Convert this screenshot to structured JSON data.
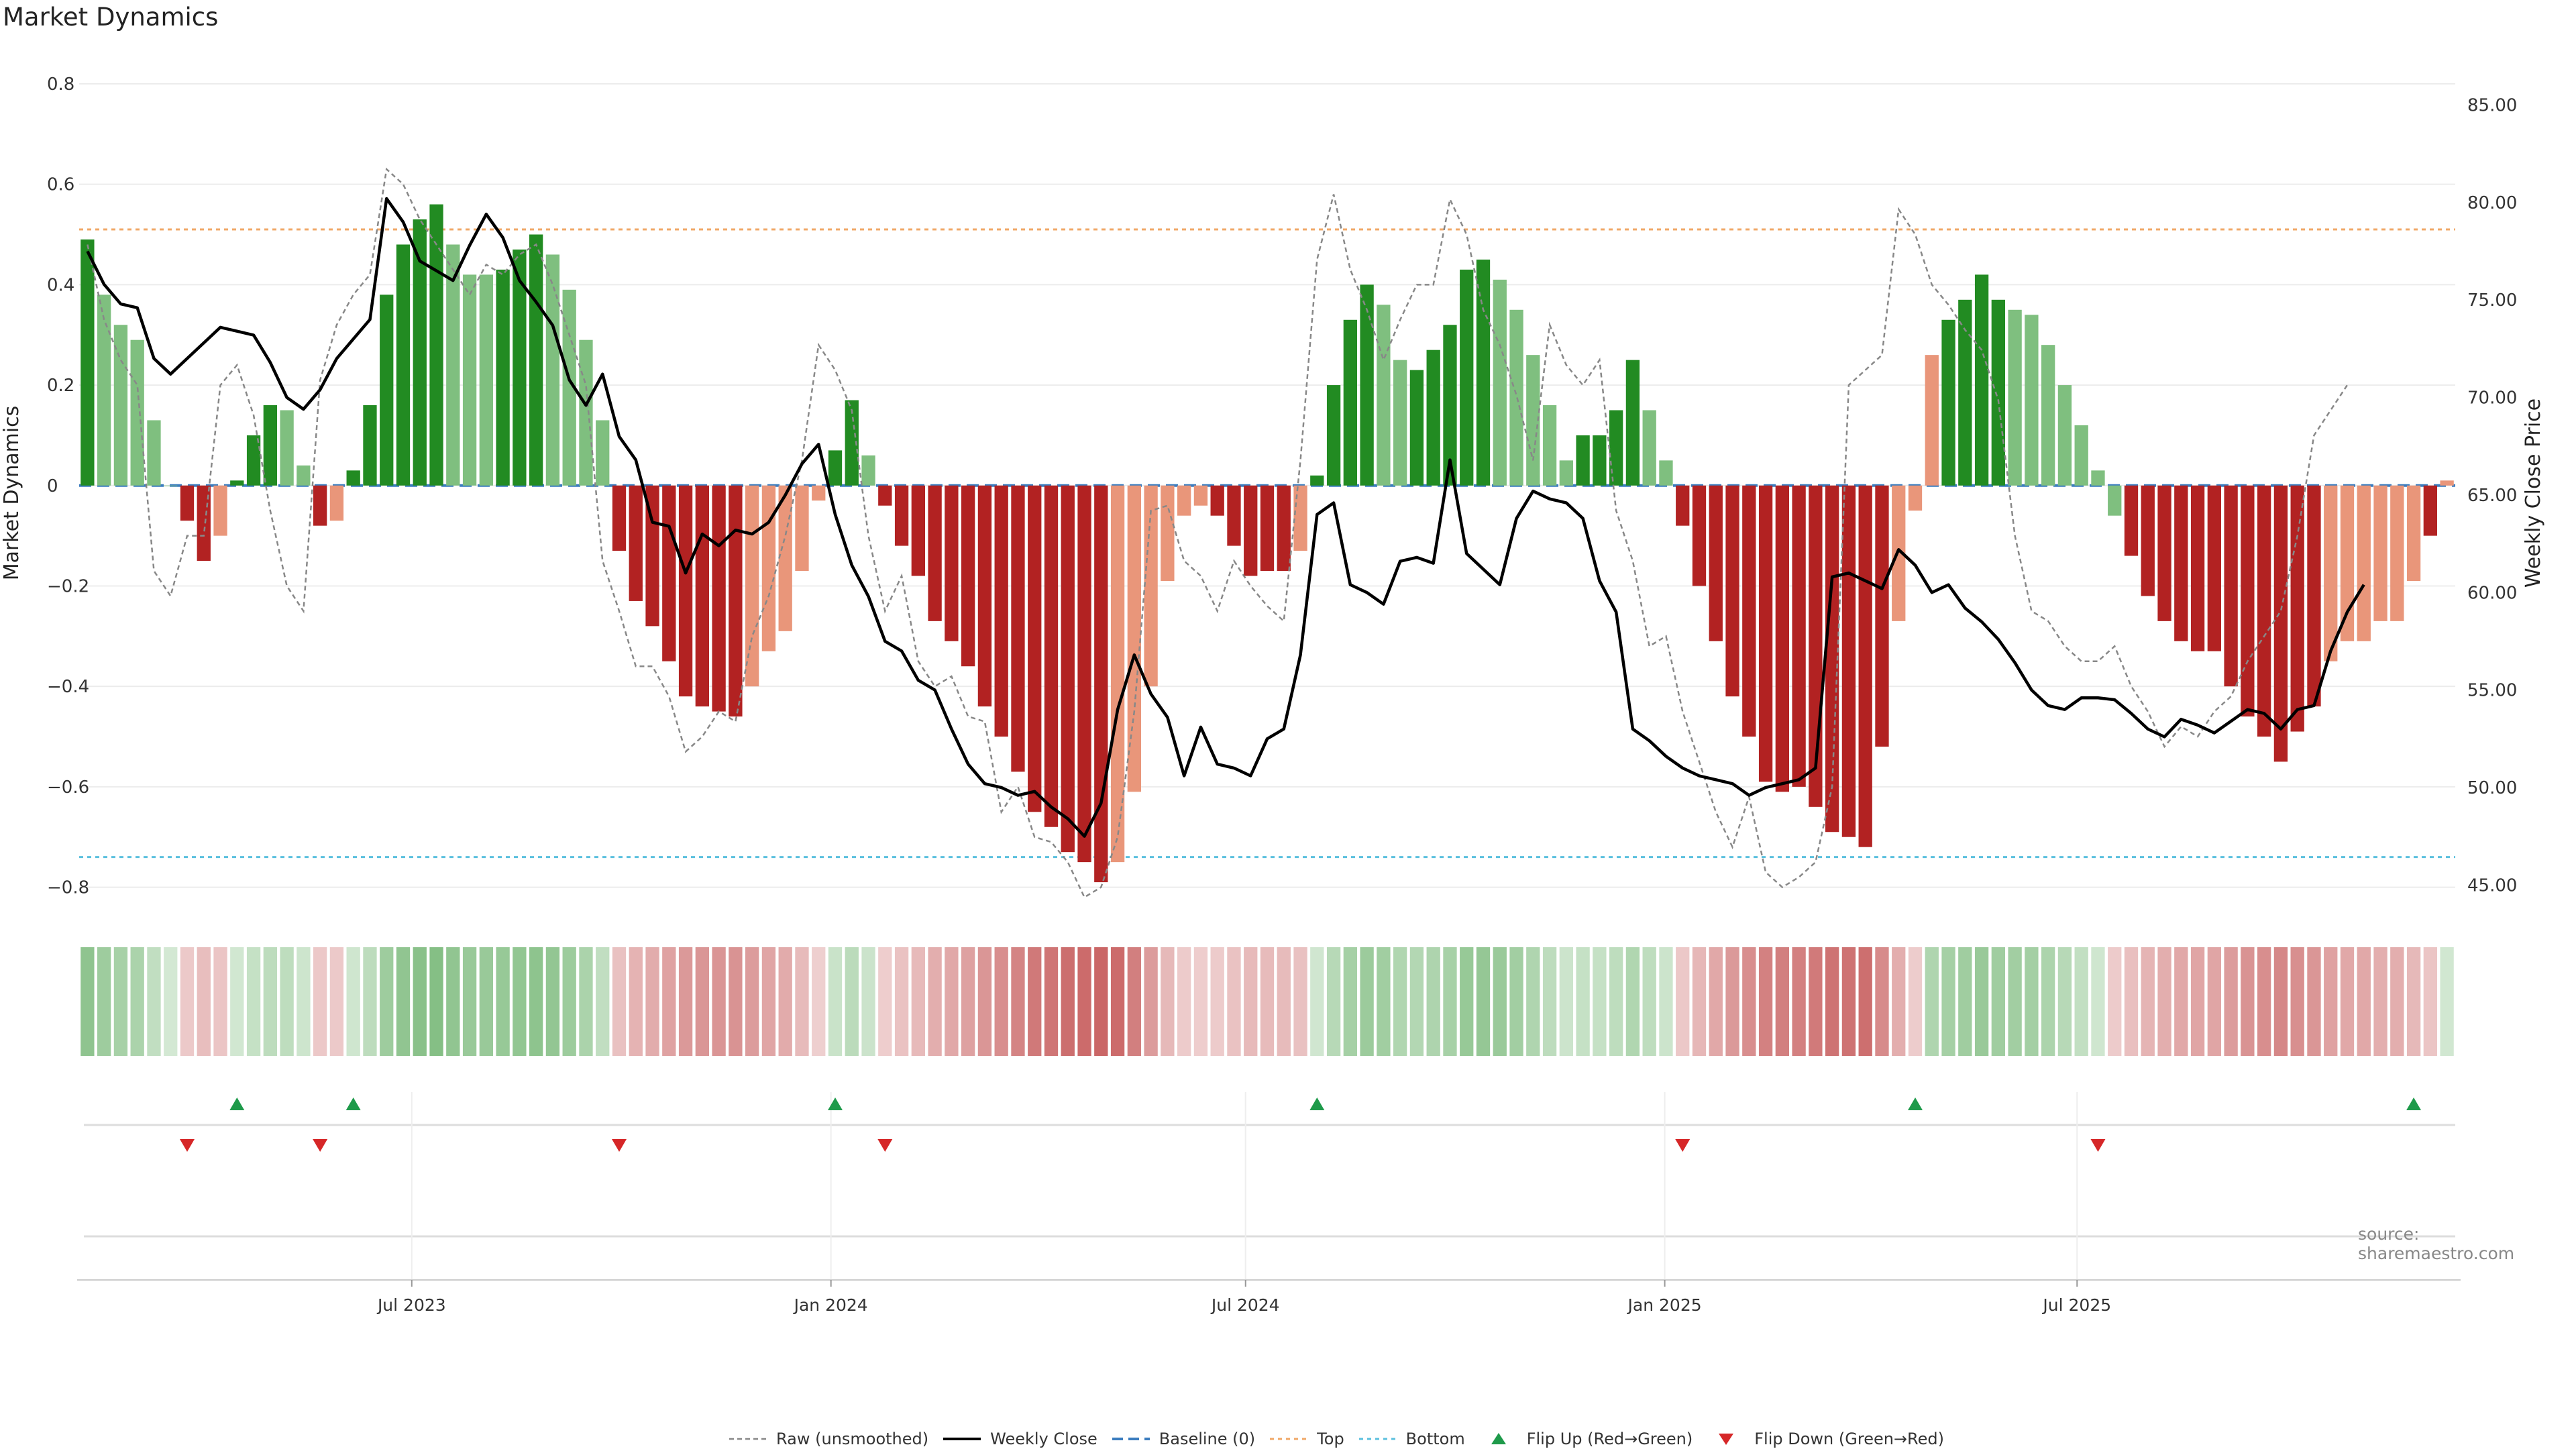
{
  "title": "Market Dynamics",
  "source": "source: sharemaestro.com",
  "colors": {
    "strong_up": "#228B22",
    "weak_up": "#7FBF7F",
    "strong_down": "#B22222",
    "weak_down": "#E9967A",
    "close": "#000000",
    "raw": "#888888",
    "baseline": "#3B7DBF",
    "top": "#F0A868",
    "bottom": "#5BC0DE",
    "flip_up": "#1E9A4A",
    "flip_down": "#D62728"
  },
  "legend": [
    {
      "key": "raw",
      "label": "Raw (unsmoothed)"
    },
    {
      "key": "close",
      "label": "Weekly Close"
    },
    {
      "key": "baseline",
      "label": "Baseline (0)"
    },
    {
      "key": "top",
      "label": "Top"
    },
    {
      "key": "bottom",
      "label": "Bottom"
    },
    {
      "key": "flip_up",
      "label": "Flip Up (Red→Green)"
    },
    {
      "key": "flip_down",
      "label": "Flip Down (Green→Red)"
    }
  ],
  "chart_data": {
    "type": "bar",
    "ylabel": "Market Dynamics",
    "y2label": "Weekly Close Price",
    "ylim": [
      -0.85,
      0.82
    ],
    "y2lim": [
      43.6,
      86.6
    ],
    "yticks": [
      0.8,
      0.6,
      0.4,
      0.2,
      0,
      -0.2,
      -0.4,
      -0.6,
      -0.8
    ],
    "y2ticks": [
      "85.00",
      "80.00",
      "75.00",
      "70.00",
      "65.00",
      "60.00",
      "55.00",
      "50.00",
      "45.00"
    ],
    "y2tick_values": [
      85,
      80,
      75,
      70,
      65,
      60,
      55,
      50,
      45
    ],
    "x_start": "2023-02-05",
    "x_end": "2025-12-14",
    "xticks": [
      {
        "label": "Jul 2023",
        "date": "2023-07-01"
      },
      {
        "label": "Jan 2024",
        "date": "2024-01-01"
      },
      {
        "label": "Jul 2024",
        "date": "2024-07-01"
      },
      {
        "label": "Jan 2025",
        "date": "2025-01-01"
      },
      {
        "label": "Jul 2025",
        "date": "2025-07-01"
      }
    ],
    "baseline": 0,
    "top": 0.51,
    "bottom": -0.74,
    "dynamics": [
      0.49,
      0.38,
      0.32,
      0.29,
      0.13,
      0.0,
      -0.07,
      -0.15,
      -0.1,
      0.01,
      0.1,
      0.16,
      0.15,
      0.04,
      -0.08,
      -0.07,
      0.03,
      0.16,
      0.38,
      0.48,
      0.53,
      0.56,
      0.48,
      0.42,
      0.42,
      0.43,
      0.47,
      0.5,
      0.46,
      0.39,
      0.29,
      0.13,
      -0.13,
      -0.23,
      -0.28,
      -0.35,
      -0.42,
      -0.44,
      -0.45,
      -0.46,
      -0.4,
      -0.33,
      -0.29,
      -0.17,
      -0.03,
      0.07,
      0.17,
      0.06,
      -0.04,
      -0.12,
      -0.18,
      -0.27,
      -0.31,
      -0.36,
      -0.44,
      -0.5,
      -0.57,
      -0.65,
      -0.68,
      -0.73,
      -0.75,
      -0.79,
      -0.75,
      -0.61,
      -0.4,
      -0.19,
      -0.06,
      -0.04,
      -0.06,
      -0.12,
      -0.18,
      -0.17,
      -0.17,
      -0.13,
      0.02,
      0.2,
      0.33,
      0.4,
      0.36,
      0.25,
      0.23,
      0.27,
      0.32,
      0.43,
      0.45,
      0.41,
      0.35,
      0.26,
      0.16,
      0.05,
      0.1,
      0.1,
      0.15,
      0.25,
      0.15,
      0.05,
      -0.08,
      -0.2,
      -0.31,
      -0.42,
      -0.5,
      -0.59,
      -0.61,
      -0.6,
      -0.64,
      -0.69,
      -0.7,
      -0.72,
      -0.52,
      -0.27,
      -0.05,
      0.26,
      0.33,
      0.37,
      0.42,
      0.37,
      0.35,
      0.34,
      0.28,
      0.2,
      0.12,
      0.03,
      -0.06,
      -0.14,
      -0.22,
      -0.27,
      -0.31,
      -0.33,
      -0.33,
      -0.4,
      -0.46,
      -0.5,
      -0.55,
      -0.49,
      -0.44,
      -0.35,
      -0.31,
      -0.31,
      -0.27,
      -0.27,
      -0.19,
      -0.1,
      0.01
    ],
    "trend": [
      "strong_up",
      "weak_up",
      "weak_up",
      "weak_up",
      "weak_up",
      "weak_up",
      "strong_down",
      "strong_down",
      "weak_down",
      "strong_up",
      "strong_up",
      "strong_up",
      "weak_up",
      "weak_up",
      "strong_down",
      "weak_down",
      "strong_up",
      "strong_up",
      "strong_up",
      "strong_up",
      "strong_up",
      "strong_up",
      "weak_up",
      "weak_up",
      "weak_up",
      "strong_up",
      "strong_up",
      "strong_up",
      "weak_up",
      "weak_up",
      "weak_up",
      "weak_up",
      "strong_down",
      "strong_down",
      "strong_down",
      "strong_down",
      "strong_down",
      "strong_down",
      "strong_down",
      "strong_down",
      "weak_down",
      "weak_down",
      "weak_down",
      "weak_down",
      "weak_down",
      "strong_up",
      "strong_up",
      "weak_up",
      "strong_down",
      "strong_down",
      "strong_down",
      "strong_down",
      "strong_down",
      "strong_down",
      "strong_down",
      "strong_down",
      "strong_down",
      "strong_down",
      "strong_down",
      "strong_down",
      "strong_down",
      "strong_down",
      "weak_down",
      "weak_down",
      "weak_down",
      "weak_down",
      "weak_down",
      "weak_down",
      "strong_down",
      "strong_down",
      "strong_down",
      "strong_down",
      "strong_down",
      "weak_down",
      "strong_up",
      "strong_up",
      "strong_up",
      "strong_up",
      "weak_up",
      "weak_up",
      "strong_up",
      "strong_up",
      "strong_up",
      "strong_up",
      "strong_up",
      "weak_up",
      "weak_up",
      "weak_up",
      "weak_up",
      "weak_up",
      "strong_up",
      "strong_up",
      "strong_up",
      "strong_up",
      "weak_up",
      "weak_up",
      "strong_down",
      "strong_down",
      "strong_down",
      "strong_down",
      "strong_down",
      "strong_down",
      "strong_down",
      "strong_down",
      "strong_down",
      "strong_down",
      "strong_down",
      "strong_down",
      "strong_down",
      "weak_down",
      "weak_down",
      "weak_down",
      "strong_up",
      "strong_up",
      "strong_up",
      "strong_up",
      "weak_up",
      "weak_up",
      "weak_up",
      "weak_up",
      "weak_up",
      "weak_up",
      "weak_up",
      "strong_down",
      "strong_down",
      "strong_down",
      "strong_down",
      "strong_down",
      "strong_down",
      "strong_down",
      "strong_down",
      "strong_down",
      "strong_down",
      "strong_down",
      "strong_down",
      "weak_down",
      "weak_down",
      "weak_down",
      "weak_down",
      "weak_down",
      "weak_down",
      "strong_down",
      "weak_down",
      "weak_down",
      "strong_up"
    ],
    "raw": [
      0.48,
      0.33,
      0.25,
      0.2,
      -0.17,
      -0.22,
      -0.1,
      -0.1,
      0.2,
      0.24,
      0.14,
      -0.05,
      -0.2,
      -0.25,
      0.21,
      0.32,
      0.38,
      0.42,
      0.63,
      0.6,
      0.53,
      0.48,
      0.43,
      0.38,
      0.44,
      0.42,
      0.46,
      0.48,
      0.4,
      0.3,
      0.2,
      -0.15,
      -0.25,
      -0.36,
      -0.36,
      -0.42,
      -0.53,
      -0.5,
      -0.45,
      -0.47,
      -0.3,
      -0.22,
      -0.1,
      0.05,
      0.28,
      0.23,
      0.15,
      -0.1,
      -0.25,
      -0.18,
      -0.35,
      -0.4,
      -0.38,
      -0.46,
      -0.47,
      -0.65,
      -0.6,
      -0.7,
      -0.71,
      -0.75,
      -0.82,
      -0.8,
      -0.7,
      -0.45,
      -0.05,
      -0.04,
      -0.15,
      -0.18,
      -0.25,
      -0.15,
      -0.2,
      -0.24,
      -0.27,
      0.05,
      0.45,
      0.58,
      0.43,
      0.35,
      0.25,
      0.33,
      0.4,
      0.4,
      0.57,
      0.5,
      0.35,
      0.28,
      0.18,
      0.05,
      0.32,
      0.24,
      0.2,
      0.25,
      -0.05,
      -0.15,
      -0.32,
      -0.3,
      -0.45,
      -0.55,
      -0.65,
      -0.72,
      -0.62,
      -0.77,
      -0.8,
      -0.78,
      -0.75,
      -0.6,
      0.2,
      0.23,
      0.26,
      0.55,
      0.5,
      0.4,
      0.36,
      0.31,
      0.27,
      0.17,
      -0.1,
      -0.25,
      -0.27,
      -0.32,
      -0.35,
      -0.35,
      -0.32,
      -0.4,
      -0.45,
      -0.52,
      -0.48,
      -0.5,
      -0.45,
      -0.42,
      -0.35,
      -0.3,
      -0.25,
      -0.1,
      0.1,
      0.15,
      0.2
    ],
    "close": [
      77.5,
      75.8,
      74.8,
      74.6,
      72.0,
      71.2,
      72.0,
      72.8,
      73.6,
      73.4,
      73.2,
      71.8,
      70.0,
      69.4,
      70.4,
      72.0,
      73.0,
      74.0,
      80.2,
      79.0,
      77.0,
      76.5,
      76.0,
      77.8,
      79.4,
      78.2,
      76.0,
      74.9,
      73.7,
      70.9,
      69.6,
      71.2,
      68.0,
      66.8,
      63.6,
      63.4,
      61.0,
      63.0,
      62.4,
      63.2,
      63.0,
      63.6,
      65.0,
      66.6,
      67.6,
      64.0,
      61.4,
      59.8,
      57.5,
      57.0,
      55.5,
      55.0,
      53.0,
      51.2,
      50.2,
      50.0,
      49.6,
      49.8,
      49.0,
      48.4,
      47.5,
      49.2,
      54.0,
      56.8,
      54.8,
      53.6,
      50.6,
      53.1,
      51.2,
      51.0,
      50.6,
      52.5,
      53.0,
      56.8,
      64.0,
      64.6,
      60.4,
      60.0,
      59.4,
      61.6,
      61.8,
      61.5,
      66.8,
      62.0,
      61.2,
      60.4,
      63.8,
      65.2,
      64.8,
      64.6,
      63.8,
      60.6,
      59.0,
      53.0,
      52.4,
      51.6,
      51.0,
      50.6,
      50.4,
      50.2,
      49.6,
      50.0,
      50.2,
      50.4,
      51.0,
      60.8,
      61.0,
      60.6,
      60.2,
      62.2,
      61.4,
      60.0,
      60.4,
      59.2,
      58.5,
      57.6,
      56.4,
      55.0,
      54.2,
      54.0,
      54.6,
      54.6,
      54.5,
      53.8,
      53.0,
      52.6,
      53.5,
      53.2,
      52.8,
      53.4,
      54.0,
      53.8,
      53.0,
      54.0,
      54.2,
      57.0,
      59.0,
      60.4
    ]
  },
  "flip_up_weeks": [
    9,
    16,
    45,
    74,
    110,
    140
  ],
  "flip_down_weeks": [
    6,
    14,
    32,
    48,
    96,
    121
  ]
}
